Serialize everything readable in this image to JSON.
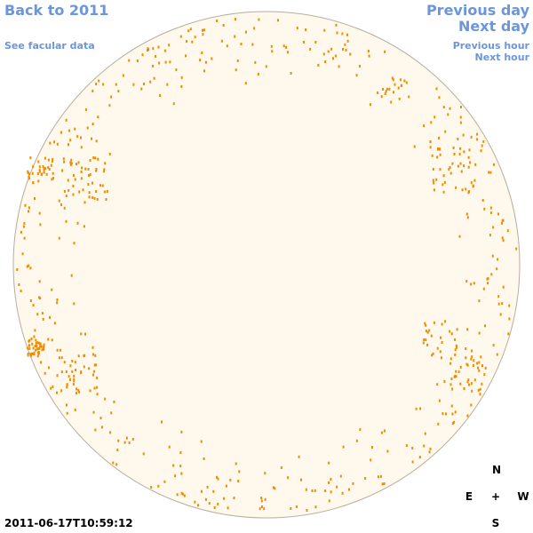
{
  "links": {
    "back": "Back to 2011",
    "facular": "See facular data",
    "previous_day": "Previous day",
    "next_day": "Next day",
    "previous_hour": "Previous hour",
    "next_hour": "Next hour"
  },
  "compass": {
    "north": "N",
    "east": "E",
    "center": "+",
    "west": "W",
    "south": "S"
  },
  "timestamp": "2011-06-17T10:59:12"
}
